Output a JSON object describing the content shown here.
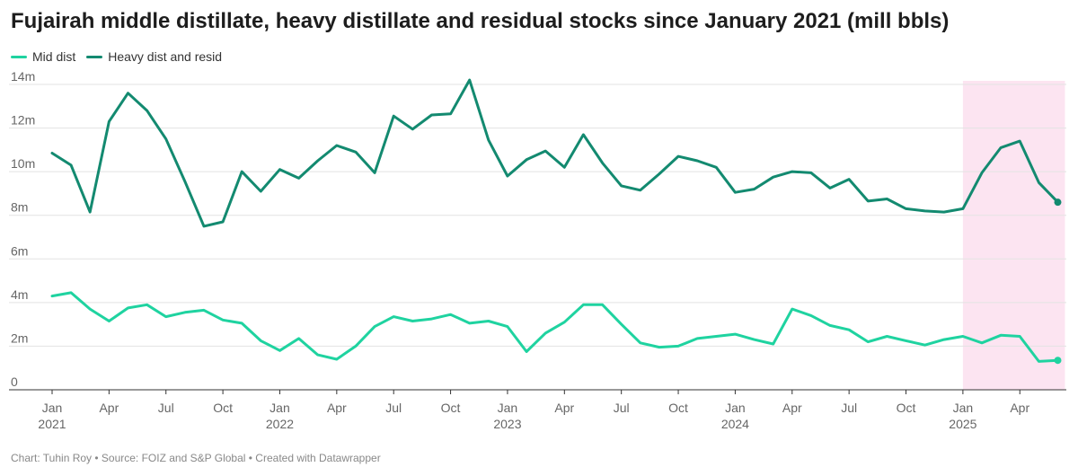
{
  "title": "Fujairah middle distillate, heavy distillate and residual stocks since January 2021 (mill bbls)",
  "footer": "Chart: Tuhin Roy • Source: FOIZ and S&P Global • Created with Datawrapper",
  "chart_data": {
    "type": "line",
    "title": "Fujairah middle distillate, heavy distillate and residual stocks since January 2021 (mill bbls)",
    "xlabel": "",
    "ylabel": "",
    "ylim": [
      0,
      14
    ],
    "yticks": [
      0,
      2,
      4,
      6,
      8,
      10,
      12,
      14
    ],
    "ytick_labels": [
      "0",
      "2m",
      "4m",
      "6m",
      "8m",
      "10m",
      "12m",
      "14m"
    ],
    "x": [
      "2021-01",
      "2021-02",
      "2021-03",
      "2021-04",
      "2021-05",
      "2021-06",
      "2021-07",
      "2021-08",
      "2021-09",
      "2021-10",
      "2021-11",
      "2021-12",
      "2022-01",
      "2022-02",
      "2022-03",
      "2022-04",
      "2022-05",
      "2022-06",
      "2022-07",
      "2022-08",
      "2022-09",
      "2022-10",
      "2022-11",
      "2022-12",
      "2023-01",
      "2023-02",
      "2023-03",
      "2023-04",
      "2023-05",
      "2023-06",
      "2023-07",
      "2023-08",
      "2023-09",
      "2023-10",
      "2023-11",
      "2023-12",
      "2024-01",
      "2024-02",
      "2024-03",
      "2024-04",
      "2024-05",
      "2024-06",
      "2024-07",
      "2024-08",
      "2024-09",
      "2024-10",
      "2024-11",
      "2024-12",
      "2025-01",
      "2025-02",
      "2025-03",
      "2025-04",
      "2025-05",
      "2025-06"
    ],
    "xticks": [
      {
        "x": "2021-01",
        "line1": "Jan",
        "line2": "2021"
      },
      {
        "x": "2021-04",
        "line1": "Apr",
        "line2": ""
      },
      {
        "x": "2021-07",
        "line1": "Jul",
        "line2": ""
      },
      {
        "x": "2021-10",
        "line1": "Oct",
        "line2": ""
      },
      {
        "x": "2022-01",
        "line1": "Jan",
        "line2": "2022"
      },
      {
        "x": "2022-04",
        "line1": "Apr",
        "line2": ""
      },
      {
        "x": "2022-07",
        "line1": "Jul",
        "line2": ""
      },
      {
        "x": "2022-10",
        "line1": "Oct",
        "line2": ""
      },
      {
        "x": "2023-01",
        "line1": "Jan",
        "line2": "2023"
      },
      {
        "x": "2023-04",
        "line1": "Apr",
        "line2": ""
      },
      {
        "x": "2023-07",
        "line1": "Jul",
        "line2": ""
      },
      {
        "x": "2023-10",
        "line1": "Oct",
        "line2": ""
      },
      {
        "x": "2024-01",
        "line1": "Jan",
        "line2": "2024"
      },
      {
        "x": "2024-04",
        "line1": "Apr",
        "line2": ""
      },
      {
        "x": "2024-07",
        "line1": "Jul",
        "line2": ""
      },
      {
        "x": "2024-10",
        "line1": "Oct",
        "line2": ""
      },
      {
        "x": "2025-01",
        "line1": "Jan",
        "line2": "2025"
      },
      {
        "x": "2025-04",
        "line1": "Apr",
        "line2": ""
      }
    ],
    "highlight_range": [
      "2025-01",
      "2025-06"
    ],
    "highlight_color": "#fce4f1",
    "grid": true,
    "legend_position": "top-left",
    "series": [
      {
        "name": "Mid dist",
        "color": "#1fd3a0",
        "values": [
          4.3,
          4.45,
          3.7,
          3.15,
          3.75,
          3.9,
          3.35,
          3.55,
          3.65,
          3.2,
          3.05,
          2.25,
          1.8,
          2.35,
          1.6,
          1.4,
          2.0,
          2.9,
          3.35,
          3.15,
          3.25,
          3.45,
          3.05,
          3.15,
          2.9,
          1.75,
          2.6,
          3.1,
          3.9,
          3.9,
          3.0,
          2.15,
          1.95,
          2.0,
          2.35,
          2.45,
          2.55,
          2.3,
          2.1,
          3.7,
          3.4,
          2.95,
          2.75,
          2.2,
          2.45,
          2.25,
          2.05,
          2.3,
          2.45,
          2.15,
          2.5,
          2.45,
          1.3,
          1.35
        ]
      },
      {
        "name": "Heavy dist and resid",
        "color": "#138a70",
        "values": [
          10.85,
          10.3,
          8.15,
          12.3,
          13.6,
          12.8,
          11.5,
          9.55,
          7.5,
          7.7,
          10.0,
          9.1,
          10.1,
          9.7,
          10.5,
          11.2,
          10.9,
          9.95,
          12.55,
          11.95,
          12.6,
          12.65,
          14.2,
          11.45,
          9.8,
          10.55,
          10.95,
          10.2,
          11.7,
          10.4,
          9.35,
          9.15,
          9.9,
          10.7,
          10.5,
          10.2,
          9.05,
          9.2,
          9.75,
          10.0,
          9.95,
          9.25,
          9.65,
          8.65,
          8.75,
          8.3,
          8.2,
          8.15,
          8.3,
          9.95,
          11.1,
          11.4,
          9.5,
          8.6
        ]
      }
    ]
  }
}
